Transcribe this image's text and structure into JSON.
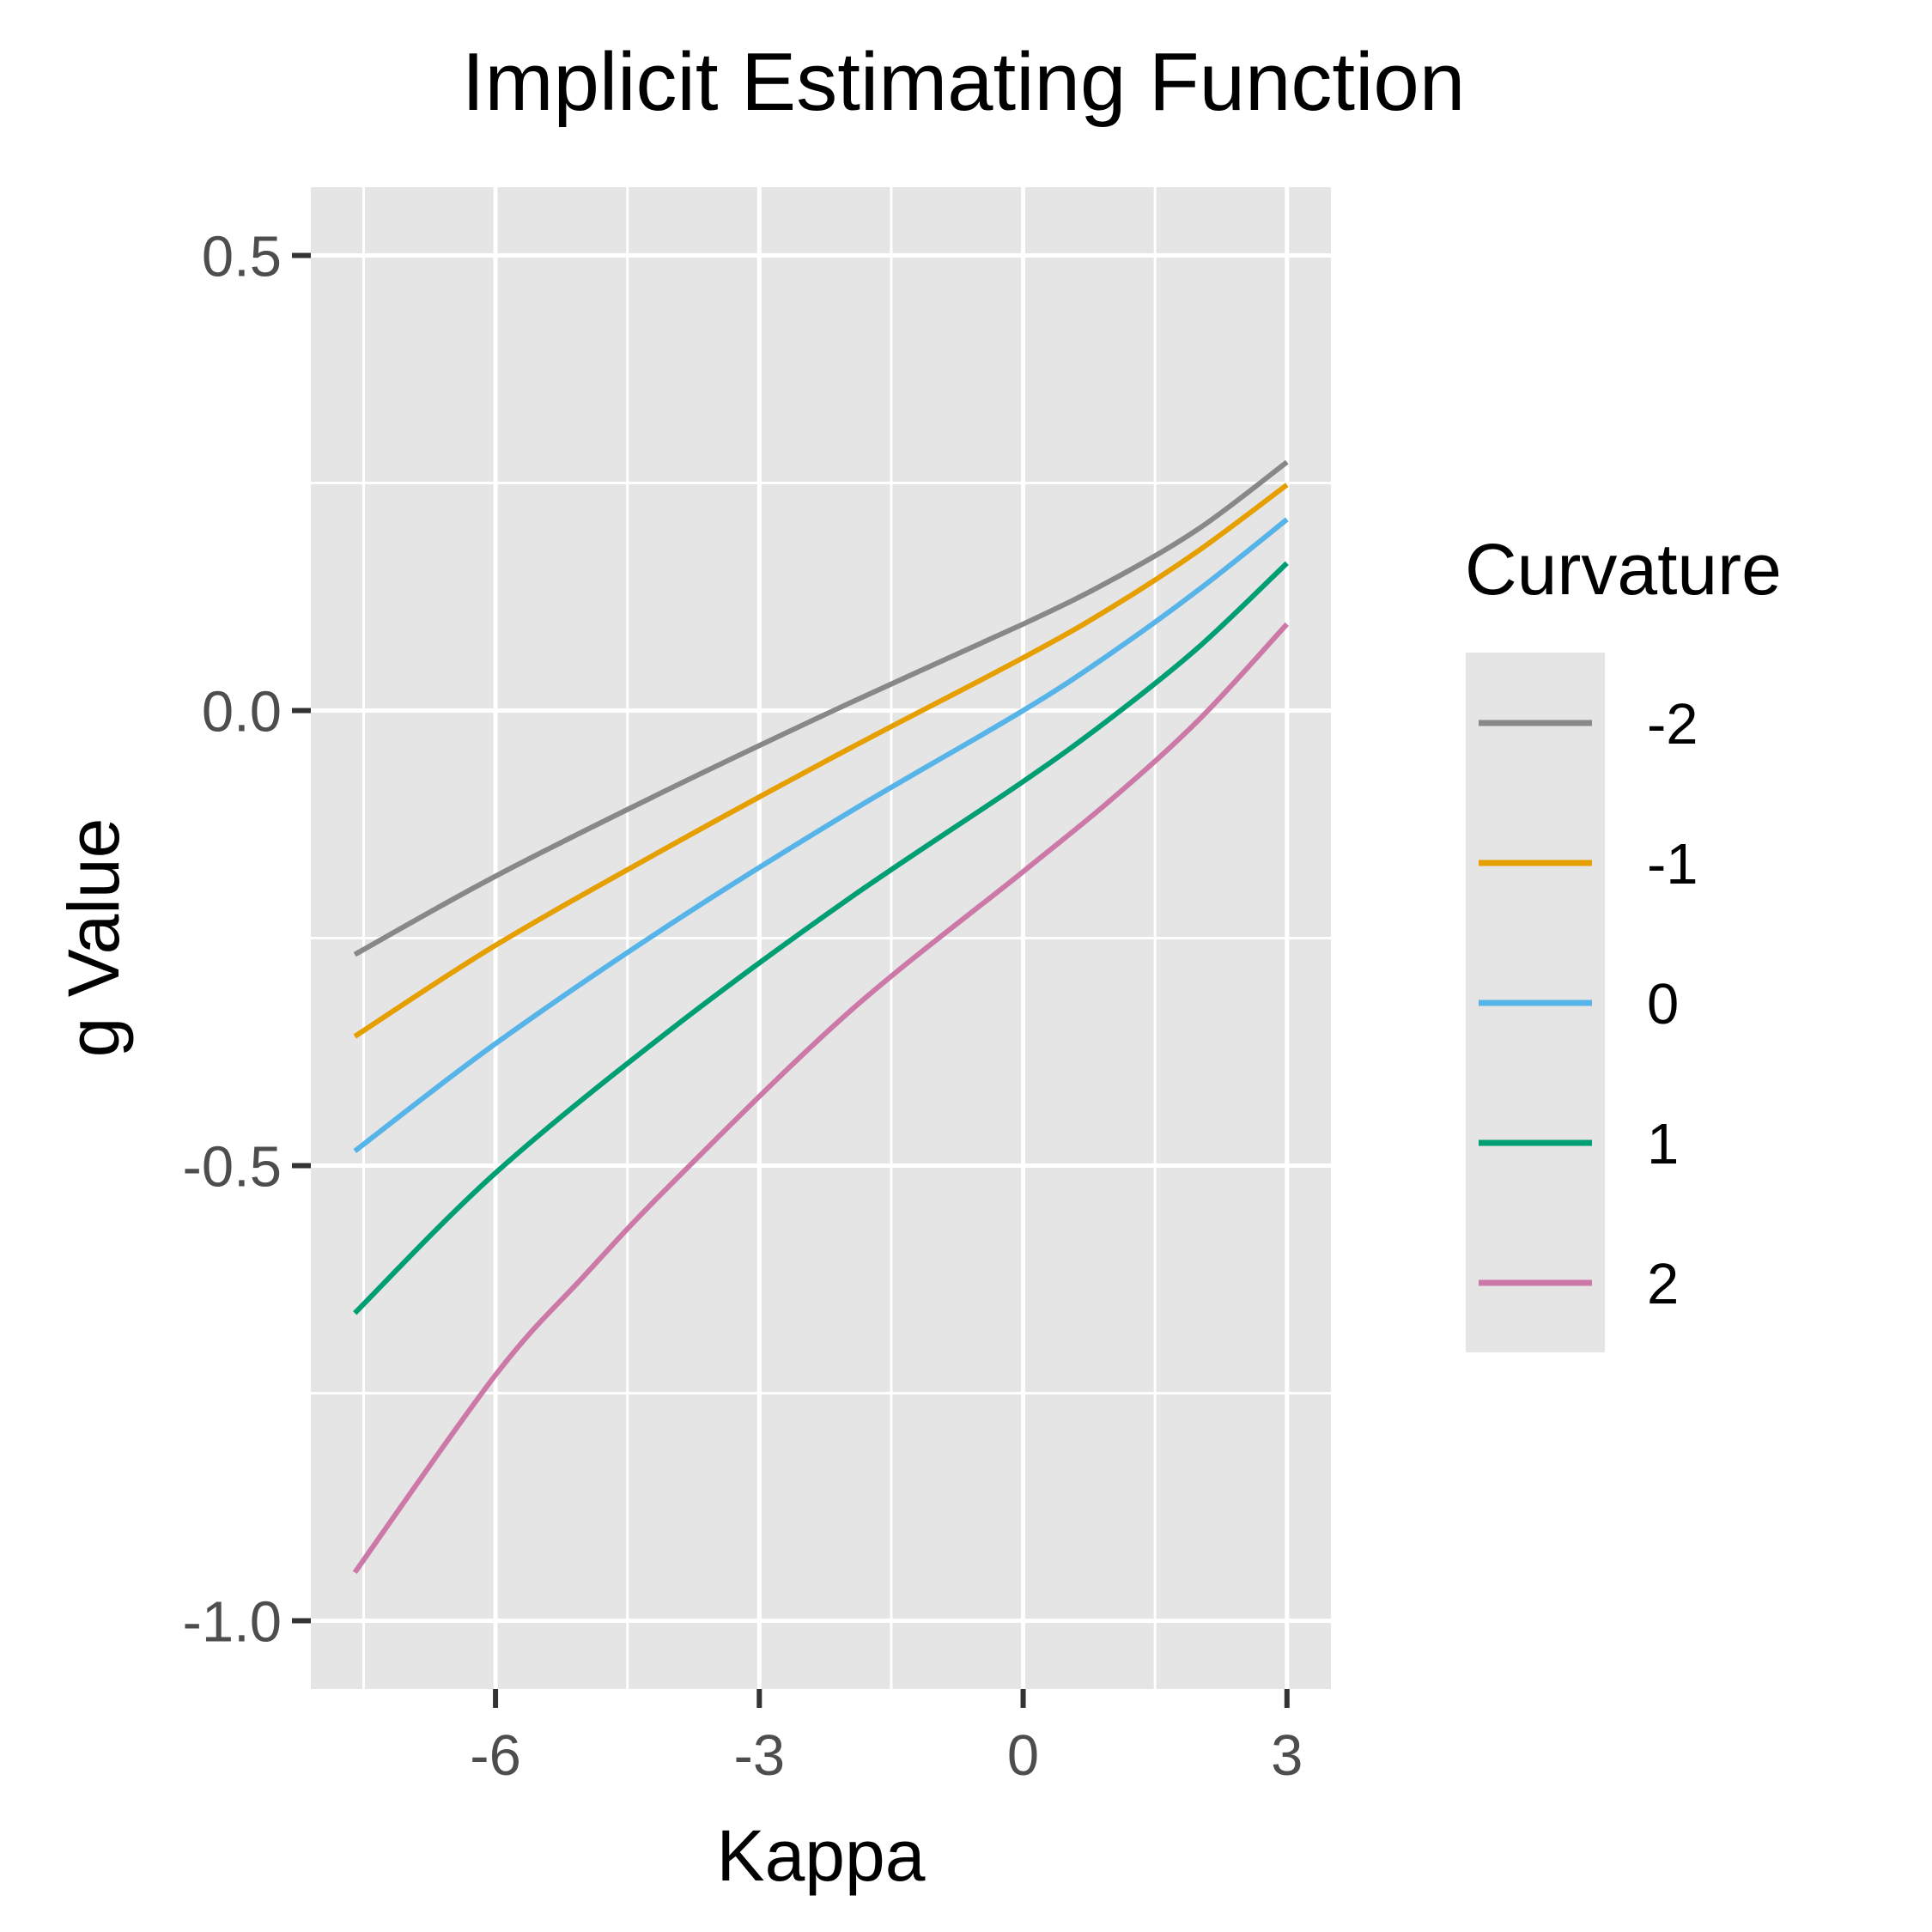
{
  "chart_data": {
    "type": "line",
    "title": "Implicit Estimating Function",
    "xlabel": "Kappa",
    "ylabel": "g Value",
    "xlim": [
      -8.1,
      3.5
    ],
    "ylim": [
      -1.075,
      0.575
    ],
    "x_ticks": [
      -6,
      -3,
      0,
      3
    ],
    "x_tick_labels": [
      "-6",
      "-3",
      "0",
      "3"
    ],
    "y_ticks": [
      0.5,
      0.0,
      -0.5,
      -1.0
    ],
    "y_tick_labels": [
      "0.5",
      "0.0",
      "-0.5",
      "-1.0"
    ],
    "grid": true,
    "legend": {
      "title": "Curvature",
      "position": "right"
    },
    "series": [
      {
        "name": "-2",
        "color": "#888888",
        "x": [
          -7.6,
          -6,
          -4,
          -2,
          0,
          1,
          2,
          3
        ],
        "y": [
          -0.268,
          -0.182,
          -0.085,
          0.007,
          0.095,
          0.143,
          0.2,
          0.273
        ]
      },
      {
        "name": "-1",
        "color": "#E69F00",
        "x": [
          -7.6,
          -6,
          -4,
          -2,
          0,
          1,
          2,
          3
        ],
        "y": [
          -0.358,
          -0.258,
          -0.148,
          -0.043,
          0.058,
          0.113,
          0.176,
          0.248
        ]
      },
      {
        "name": "0",
        "color": "#56B4E9",
        "x": [
          -7.6,
          -6,
          -4,
          -2,
          0,
          1,
          2,
          3
        ],
        "y": [
          -0.484,
          -0.366,
          -0.234,
          -0.113,
          0.0,
          0.063,
          0.133,
          0.21
        ]
      },
      {
        "name": "1",
        "color": "#009E73",
        "x": [
          -7.6,
          -6,
          -4,
          -2,
          0,
          1,
          2,
          3
        ],
        "y": [
          -0.662,
          -0.508,
          -0.35,
          -0.208,
          -0.078,
          -0.008,
          0.07,
          0.162
        ]
      },
      {
        "name": "2",
        "color": "#CC79A7",
        "x": [
          -7.6,
          -6,
          -5,
          -4,
          -2,
          0,
          1,
          2,
          3
        ],
        "y": [
          -0.947,
          -0.73,
          -0.622,
          -0.52,
          -0.333,
          -0.177,
          -0.098,
          -0.01,
          0.095
        ]
      }
    ]
  }
}
